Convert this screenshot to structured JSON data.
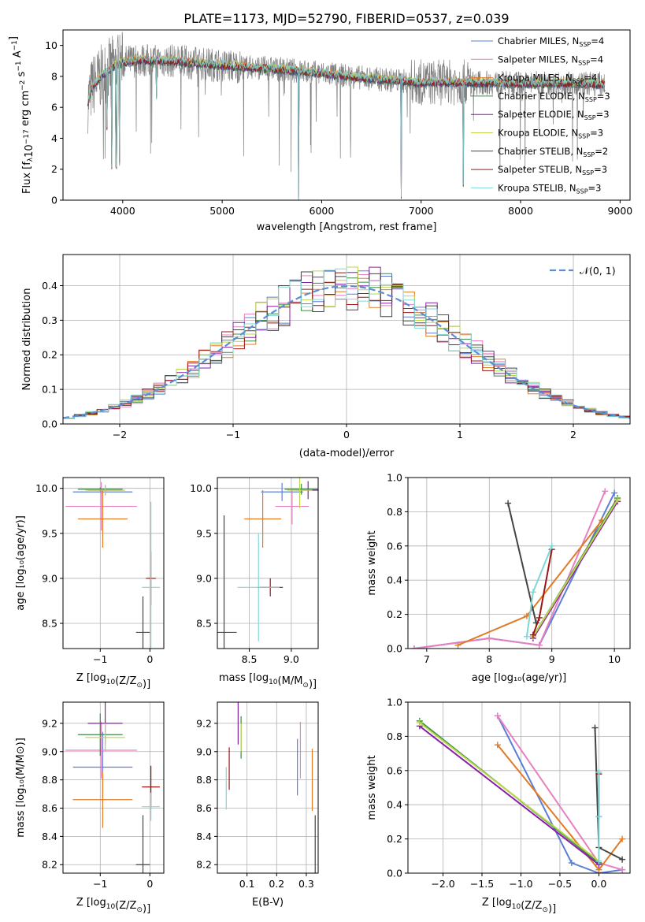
{
  "figure": {
    "title": "PLATE=1173, MJD=52790, FIBERID=0537, z=0.039"
  },
  "colors": {
    "Chabrier MILES": "#5b7fd6",
    "Salpeter MILES": "#e680c0",
    "Kroupa MILES": "#e07b28",
    "Chabrier ELODIE": "#3c8c46",
    "Salpeter ELODIE": "#8a1ea8",
    "Kroupa ELODIE": "#b9d64a",
    "Chabrier STELIB": "#444444",
    "Salpeter STELIB": "#9b1616",
    "Kroupa STELIB": "#80d6d6",
    "data": "#808080"
  },
  "chart_data": [
    {
      "id": "spectrum",
      "type": "line",
      "xlabel": "wavelength [Angstrom, rest frame]",
      "ylabel_main": "Flux [f",
      "ylabel_sub": "λ",
      "ylabel_rest": "10",
      "ylabel_sup": "−17",
      "ylabel_tail": " erg cm",
      "ylabel_sup2": "−2",
      "ylabel_tail2": " s",
      "ylabel_sup3": "−1",
      "ylabel_tail3": " A",
      "ylabel_sup4": "−1",
      "ylabel_end": "]",
      "xlim": [
        3400,
        9100
      ],
      "ylim": [
        0,
        11
      ],
      "xticks": [
        4000,
        5000,
        6000,
        7000,
        8000,
        9000
      ],
      "yticks": [
        0,
        2,
        4,
        6,
        8,
        10
      ],
      "legend_position": "top-right",
      "legend": [
        {
          "pre": "Chabrier MILES, N",
          "sub": "SSP",
          "post": "=4",
          "color": "#5b7fd6"
        },
        {
          "pre": "Salpeter MILES, N",
          "sub": "SSP",
          "post": "=4",
          "color": "#e680c0"
        },
        {
          "pre": "Kroupa MILES, N",
          "sub": "SSP",
          "post": "=4",
          "color": "#e07b28"
        },
        {
          "pre": "Chabrier ELODIE, N",
          "sub": "SSP",
          "post": "=3",
          "color": "#3c8c46"
        },
        {
          "pre": "Salpeter ELODIE, N",
          "sub": "SSP",
          "post": "=3",
          "color": "#8a1ea8"
        },
        {
          "pre": "Kroupa ELODIE, N",
          "sub": "SSP",
          "post": "=3",
          "color": "#b9d64a"
        },
        {
          "pre": "Chabrier STELIB, N",
          "sub": "SSP",
          "post": "=2",
          "color": "#444444"
        },
        {
          "pre": "Salpeter STELIB, N",
          "sub": "SSP",
          "post": "=3",
          "color": "#9b1616"
        },
        {
          "pre": "Kroupa STELIB, N",
          "sub": "SSP",
          "post": "=3",
          "color": "#80d6d6"
        }
      ],
      "data_range": [
        3650,
        8850
      ],
      "model_continuum": [
        [
          3650,
          6.4
        ],
        [
          3700,
          7.4
        ],
        [
          3800,
          8.1
        ],
        [
          3900,
          8.6
        ],
        [
          4000,
          8.9
        ],
        [
          4100,
          9.0
        ],
        [
          4200,
          9.05
        ],
        [
          4300,
          9.0
        ],
        [
          4500,
          9.0
        ],
        [
          5000,
          8.7
        ],
        [
          5500,
          8.5
        ],
        [
          6000,
          8.2
        ],
        [
          6500,
          7.85
        ],
        [
          7000,
          7.6
        ],
        [
          7500,
          7.6
        ],
        [
          8000,
          7.55
        ],
        [
          8500,
          7.55
        ],
        [
          8850,
          7.5
        ]
      ],
      "model_dips": [
        [
          3840,
          4.5
        ],
        [
          3890,
          2.0
        ],
        [
          3935,
          2.0
        ],
        [
          3970,
          2.2
        ],
        [
          4340,
          6.5
        ],
        [
          5770,
          0
        ],
        [
          6800,
          0
        ],
        [
          7425,
          0.8
        ]
      ]
    },
    {
      "id": "residual-hist",
      "type": "area",
      "xlabel": "(data-model)/error",
      "ylabel": "Normed distribution",
      "xlim": [
        -2.5,
        2.5
      ],
      "ylim": [
        0,
        0.49
      ],
      "xticks": [
        -2,
        -1,
        0,
        1,
        2
      ],
      "xtick_labels": [
        "−2",
        "−1",
        "0",
        "1",
        "2"
      ],
      "yticks": [
        0,
        0.1,
        0.2,
        0.3,
        0.4
      ],
      "ytick_labels": [
        "0.0",
        "0.1",
        "0.2",
        "0.3",
        "0.4"
      ],
      "grid": true,
      "legend_label": "𝒩(0, 1)",
      "legend_position": "top-right",
      "bin_width": 0.1,
      "bin_start": -2.5,
      "gaussian": {
        "mu": 0,
        "sigma": 1
      }
    },
    {
      "id": "age-vs-Z",
      "type": "scatter",
      "xlabel": "Z [log",
      "xlabel_sub": "10",
      "xlabel_rest": "(Z/Z",
      "xlabel_sub2": "⊙",
      "xlabel_end": ")]",
      "ylabel": "age  [log₁₀(age/yr)]",
      "xlim": [
        -1.75,
        0.28
      ],
      "ylim": [
        8.22,
        10.12
      ],
      "xticks": [
        -1,
        0
      ],
      "xtick_labels": [
        "−1",
        "0"
      ],
      "yticks": [
        8.5,
        9.0,
        9.5,
        10.0
      ],
      "ytick_labels": [
        "8.5",
        "9.0",
        "9.5",
        "10.0"
      ],
      "points": [
        {
          "model": "Chabrier MILES",
          "x": -0.95,
          "xerr": 0.6,
          "y": 9.96,
          "yerr": 0.03
        },
        {
          "model": "Salpeter MILES",
          "x": -0.98,
          "xerr": 0.72,
          "y": 9.8,
          "yerr": 0.27
        },
        {
          "model": "Kroupa MILES",
          "x": -0.95,
          "xerr": 0.5,
          "y": 9.66,
          "yerr": 0.32
        },
        {
          "model": "Chabrier ELODIE",
          "x": -1.0,
          "xerr": 0.45,
          "y": 9.99,
          "yerr": 0.02
        },
        {
          "model": "Salpeter ELODIE",
          "x": -0.9,
          "xerr": 0.35,
          "y": 9.98,
          "yerr": 0.05
        },
        {
          "model": "Kroupa ELODIE",
          "x": -0.9,
          "xerr": 0.4,
          "y": 9.98,
          "yerr": 0.06
        },
        {
          "model": "Chabrier STELIB",
          "x": -0.14,
          "xerr": 0.14,
          "y": 8.4,
          "yerr": 0.4
        },
        {
          "model": "Salpeter STELIB",
          "x": 0.02,
          "xerr": 0.1,
          "y": 9.0,
          "yerr": 0.3
        },
        {
          "model": "Kroupa STELIB",
          "x": 0.02,
          "xerr": 0.18,
          "y": 8.9,
          "yerr": 0.95
        }
      ]
    },
    {
      "id": "age-vs-mass",
      "type": "scatter",
      "xlabel": "mass [log",
      "xlabel_sub": "10",
      "xlabel_rest": "(M/M",
      "xlabel_sub2": "⊙",
      "xlabel_end": ")]",
      "xlim": [
        8.12,
        9.32
      ],
      "ylim": [
        8.22,
        10.12
      ],
      "xticks": [
        8.5,
        9.0
      ],
      "xtick_labels": [
        "8.5",
        "9.0"
      ],
      "yticks": [
        8.5,
        9.0,
        9.5,
        10.0
      ],
      "ytick_labels": [
        "8.5",
        "9.0",
        "9.5",
        "10.0"
      ],
      "points": [
        {
          "model": "Chabrier MILES",
          "x": 8.89,
          "xerr": 0.25,
          "y": 9.96,
          "yerr": 0.1
        },
        {
          "model": "Salpeter MILES",
          "x": 9.01,
          "xerr": 0.2,
          "y": 9.8,
          "yerr": 0.2
        },
        {
          "model": "Kroupa MILES",
          "x": 8.66,
          "xerr": 0.22,
          "y": 9.66,
          "yerr": 0.32
        },
        {
          "model": "Chabrier ELODIE",
          "x": 9.12,
          "xerr": 0.2,
          "y": 9.99,
          "yerr": 0.06
        },
        {
          "model": "Salpeter ELODIE",
          "x": 9.2,
          "xerr": 0.15,
          "y": 9.98,
          "yerr": 0.1
        },
        {
          "model": "Kroupa ELODIE",
          "x": 9.1,
          "xerr": 0.15,
          "y": 9.98,
          "yerr": 0.2
        },
        {
          "model": "Chabrier STELIB",
          "x": 8.2,
          "xerr": 0.15,
          "y": 8.4,
          "yerr": 1.3
        },
        {
          "model": "Salpeter STELIB",
          "x": 8.75,
          "xerr": 0.15,
          "y": 8.9,
          "yerr": 0.1
        },
        {
          "model": "Kroupa STELIB",
          "x": 8.61,
          "xerr": 0.25,
          "y": 8.9,
          "yerr": 0.6
        }
      ]
    },
    {
      "id": "weight-vs-age",
      "type": "line",
      "xlabel": "age  [log₁₀(age/yr)]",
      "ylabel": "mass weight",
      "xlim": [
        6.7,
        10.25
      ],
      "ylim": [
        0,
        1.0
      ],
      "xticks": [
        7,
        8,
        9,
        10
      ],
      "xtick_labels": [
        "7",
        "8",
        "9",
        "10"
      ],
      "yticks": [
        0,
        0.2,
        0.4,
        0.6,
        0.8,
        1.0
      ],
      "ytick_labels": [
        "0.0",
        "0.2",
        "0.4",
        "0.6",
        "0.8",
        "1.0"
      ],
      "series": [
        {
          "model": "Chabrier MILES",
          "x": [
            6.8,
            8.0,
            8.8,
            10.0
          ],
          "y": [
            0.0,
            0.06,
            0.02,
            0.91
          ]
        },
        {
          "model": "Salpeter MILES",
          "x": [
            6.8,
            8.0,
            8.8,
            9.85
          ],
          "y": [
            0.0,
            0.06,
            0.02,
            0.92
          ]
        },
        {
          "model": "Kroupa MILES",
          "x": [
            7.5,
            8.6,
            9.8
          ],
          "y": [
            0.02,
            0.19,
            0.75
          ]
        },
        {
          "model": "Chabrier ELODIE",
          "x": [
            8.7,
            10.05
          ],
          "y": [
            0.07,
            0.88
          ]
        },
        {
          "model": "Salpeter ELODIE",
          "x": [
            8.7,
            10.05
          ],
          "y": [
            0.06,
            0.86
          ]
        },
        {
          "model": "Kroupa ELODIE",
          "x": [
            8.7,
            10.05
          ],
          "y": [
            0.07,
            0.87
          ]
        },
        {
          "model": "Chabrier STELIB",
          "x": [
            8.3,
            8.75
          ],
          "y": [
            0.85,
            0.15
          ]
        },
        {
          "model": "Salpeter STELIB",
          "x": [
            8.7,
            8.8,
            9.0
          ],
          "y": [
            0.08,
            0.18,
            0.58
          ]
        },
        {
          "model": "Kroupa STELIB",
          "x": [
            8.6,
            8.7,
            9.0
          ],
          "y": [
            0.07,
            0.33,
            0.6
          ]
        }
      ]
    },
    {
      "id": "mass-vs-Z",
      "type": "scatter",
      "xlabel": "Z [log",
      "xlabel_sub": "10",
      "xlabel_rest": "(Z/Z",
      "xlabel_sub2": "⊙",
      "xlabel_end": ")]",
      "ylabel": "mass [log₁₀(M/M⊙)]",
      "xlim": [
        -1.75,
        0.28
      ],
      "ylim": [
        8.14,
        9.35
      ],
      "xticks": [
        -1,
        0
      ],
      "xtick_labels": [
        "−1",
        "0"
      ],
      "yticks": [
        8.2,
        8.4,
        8.6,
        8.8,
        9.0,
        9.2
      ],
      "ytick_labels": [
        "8.2",
        "8.4",
        "8.6",
        "8.8",
        "9.0",
        "9.2"
      ],
      "points": [
        {
          "model": "Chabrier MILES",
          "x": -0.95,
          "xerr": 0.6,
          "y": 8.89,
          "yerr": 0.25
        },
        {
          "model": "Salpeter MILES",
          "x": -0.98,
          "xerr": 0.72,
          "y": 9.01,
          "yerr": 0.2
        },
        {
          "model": "Kroupa MILES",
          "x": -0.95,
          "xerr": 0.6,
          "y": 8.66,
          "yerr": 0.2
        },
        {
          "model": "Chabrier ELODIE",
          "x": -1.0,
          "xerr": 0.45,
          "y": 9.12,
          "yerr": 0.15
        },
        {
          "model": "Salpeter ELODIE",
          "x": -0.9,
          "xerr": 0.35,
          "y": 9.2,
          "yerr": 0.15
        },
        {
          "model": "Kroupa ELODIE",
          "x": -0.9,
          "xerr": 0.4,
          "y": 9.1,
          "yerr": 0.1
        },
        {
          "model": "Chabrier STELIB",
          "x": -0.14,
          "xerr": 0.14,
          "y": 8.2,
          "yerr": 0.35
        },
        {
          "model": "Salpeter STELIB",
          "x": 0.02,
          "xerr": 0.18,
          "y": 8.75,
          "yerr": 0.15
        },
        {
          "model": "Kroupa STELIB",
          "x": 0.02,
          "xerr": 0.18,
          "y": 8.61,
          "yerr": 0.1
        }
      ]
    },
    {
      "id": "mass-vs-ebv",
      "type": "scatter",
      "xlabel": "E(B-V)",
      "xlim": [
        0.0,
        0.34
      ],
      "ylim": [
        8.14,
        9.35
      ],
      "xticks": [
        0.1,
        0.2,
        0.3
      ],
      "xtick_labels": [
        "0.1",
        "0.2",
        "0.3"
      ],
      "yticks": [
        8.2,
        8.4,
        8.6,
        8.8,
        9.0,
        9.2
      ],
      "ytick_labels": [
        "8.2",
        "8.4",
        "8.6",
        "8.8",
        "9.0",
        "9.2"
      ],
      "points": [
        {
          "model": "Chabrier MILES",
          "x": 0.27,
          "y": 8.89,
          "yerr": 0.2
        },
        {
          "model": "Salpeter MILES",
          "x": 0.28,
          "y": 9.01,
          "yerr": 0.2
        },
        {
          "model": "Kroupa MILES",
          "x": 0.32,
          "y": 8.8,
          "yerr": 0.22
        },
        {
          "model": "Chabrier ELODIE",
          "x": 0.08,
          "y": 9.1,
          "yerr": 0.15
        },
        {
          "model": "Salpeter ELODIE",
          "x": 0.07,
          "y": 9.2,
          "yerr": 0.15
        },
        {
          "model": "Kroupa ELODIE",
          "x": 0.08,
          "y": 9.1,
          "yerr": 0.1
        },
        {
          "model": "Chabrier STELIB",
          "x": 0.33,
          "y": 8.2,
          "yerr": 0.35
        },
        {
          "model": "Salpeter STELIB",
          "x": 0.04,
          "y": 8.88,
          "yerr": 0.15
        },
        {
          "model": "Kroupa STELIB",
          "x": 0.03,
          "y": 8.74,
          "yerr": 0.15
        }
      ]
    },
    {
      "id": "weight-vs-Z",
      "type": "line",
      "xlabel": "Z [log",
      "xlabel_sub": "10",
      "xlabel_rest": "(Z/Z",
      "xlabel_sub2": "⊙",
      "xlabel_end": ")]",
      "ylabel": "mass weight",
      "xlim": [
        -2.45,
        0.4
      ],
      "ylim": [
        0,
        1.0
      ],
      "xticks": [
        -2.0,
        -1.5,
        -1.0,
        -0.5,
        0.0
      ],
      "xtick_labels": [
        "−2.0",
        "−1.5",
        "−1.0",
        "−0.5",
        "0.0"
      ],
      "yticks": [
        0,
        0.2,
        0.4,
        0.6,
        0.8,
        1.0
      ],
      "ytick_labels": [
        "0.0",
        "0.2",
        "0.4",
        "0.6",
        "0.8",
        "1.0"
      ],
      "series": [
        {
          "model": "Chabrier MILES",
          "x": [
            -1.3,
            -0.35,
            0.0,
            0.3
          ],
          "y": [
            0.92,
            0.06,
            0.0,
            0.02
          ]
        },
        {
          "model": "Salpeter MILES",
          "x": [
            -1.3,
            0.0,
            0.3
          ],
          "y": [
            0.92,
            0.06,
            0.02
          ]
        },
        {
          "model": "Kroupa MILES",
          "x": [
            -1.3,
            0.0,
            0.3
          ],
          "y": [
            0.75,
            0.02,
            0.2
          ]
        },
        {
          "model": "Chabrier ELODIE",
          "x": [
            -2.3,
            0.0
          ],
          "y": [
            0.89,
            0.06
          ]
        },
        {
          "model": "Salpeter ELODIE",
          "x": [
            -2.3,
            0.0
          ],
          "y": [
            0.86,
            0.05
          ]
        },
        {
          "model": "Kroupa ELODIE",
          "x": [
            -2.3,
            0.0
          ],
          "y": [
            0.88,
            0.07
          ]
        },
        {
          "model": "Chabrier STELIB",
          "x": [
            -0.05,
            0.0,
            0.3
          ],
          "y": [
            0.85,
            0.15,
            0.08
          ]
        },
        {
          "model": "Salpeter STELIB",
          "x": [
            0.0,
            0.0
          ],
          "y": [
            0.33,
            0.58
          ]
        },
        {
          "model": "Kroupa STELIB",
          "x": [
            0.0,
            0.0,
            0.0
          ],
          "y": [
            0.59,
            0.33,
            0.07
          ]
        }
      ]
    }
  ]
}
